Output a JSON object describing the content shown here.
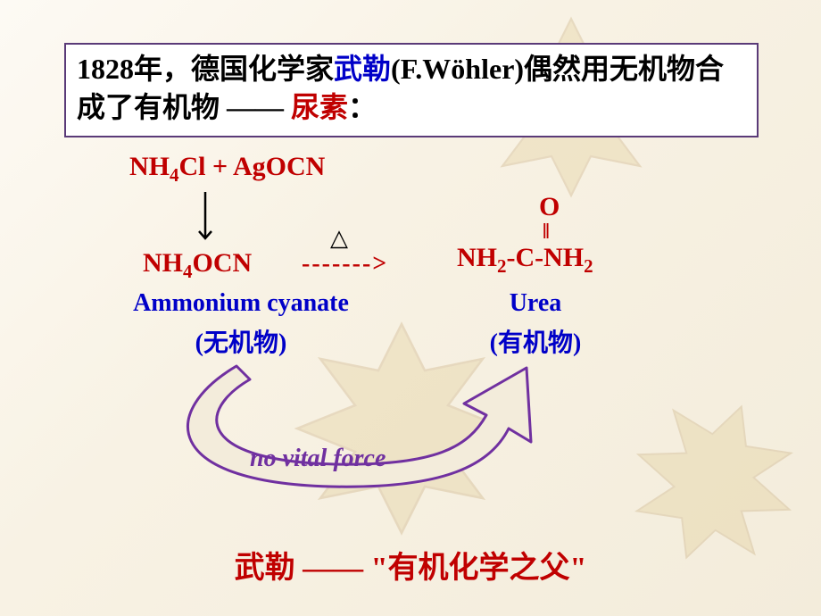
{
  "colors": {
    "bg_border": "#5a3a78",
    "black": "#000000",
    "blue": "#0000c8",
    "red": "#c00000",
    "purple": "#7030a0",
    "leaf_fill": "#d9c07a",
    "leaf_stroke": "#b8955a"
  },
  "title": {
    "part1": "1828年，德国化学家",
    "name": "武勒",
    "part2": "(F.Wöhler)偶然用无机物合成了有机物 —— ",
    "product": " 尿素",
    "colon": "：",
    "fontsize": 32,
    "box_border_width": 2
  },
  "reaction": {
    "reactants": "NH₄Cl + AgOCN",
    "reactants_html": "NH<sub>4</sub>Cl + AgOCN",
    "intermediate_html": "NH<sub>4</sub>OCN",
    "dashes": "------->",
    "heat_symbol": "△",
    "urea_O": "O",
    "urea_dbl": "‖",
    "urea_main_html": "NH<sub>2</sub>-C-NH<sub>2</sub>",
    "formula_fontsize": 30
  },
  "labels": {
    "ammonium_en": "Ammonium cyanate",
    "ammonium_zh": "(无机物)",
    "urea_en": "Urea",
    "urea_zh": "(有机物)",
    "en_fontsize": 28,
    "zh_fontsize": 28
  },
  "annotation": {
    "text": "no  vital force",
    "fontsize": 28
  },
  "footer": {
    "name": "武勒",
    "dash": " —— ",
    "quote": "\"有机化学之父\"",
    "fontsize": 34
  },
  "arrow": {
    "stroke": "#7030a0",
    "stroke_width": 3,
    "fill": "#f3ecdb"
  }
}
